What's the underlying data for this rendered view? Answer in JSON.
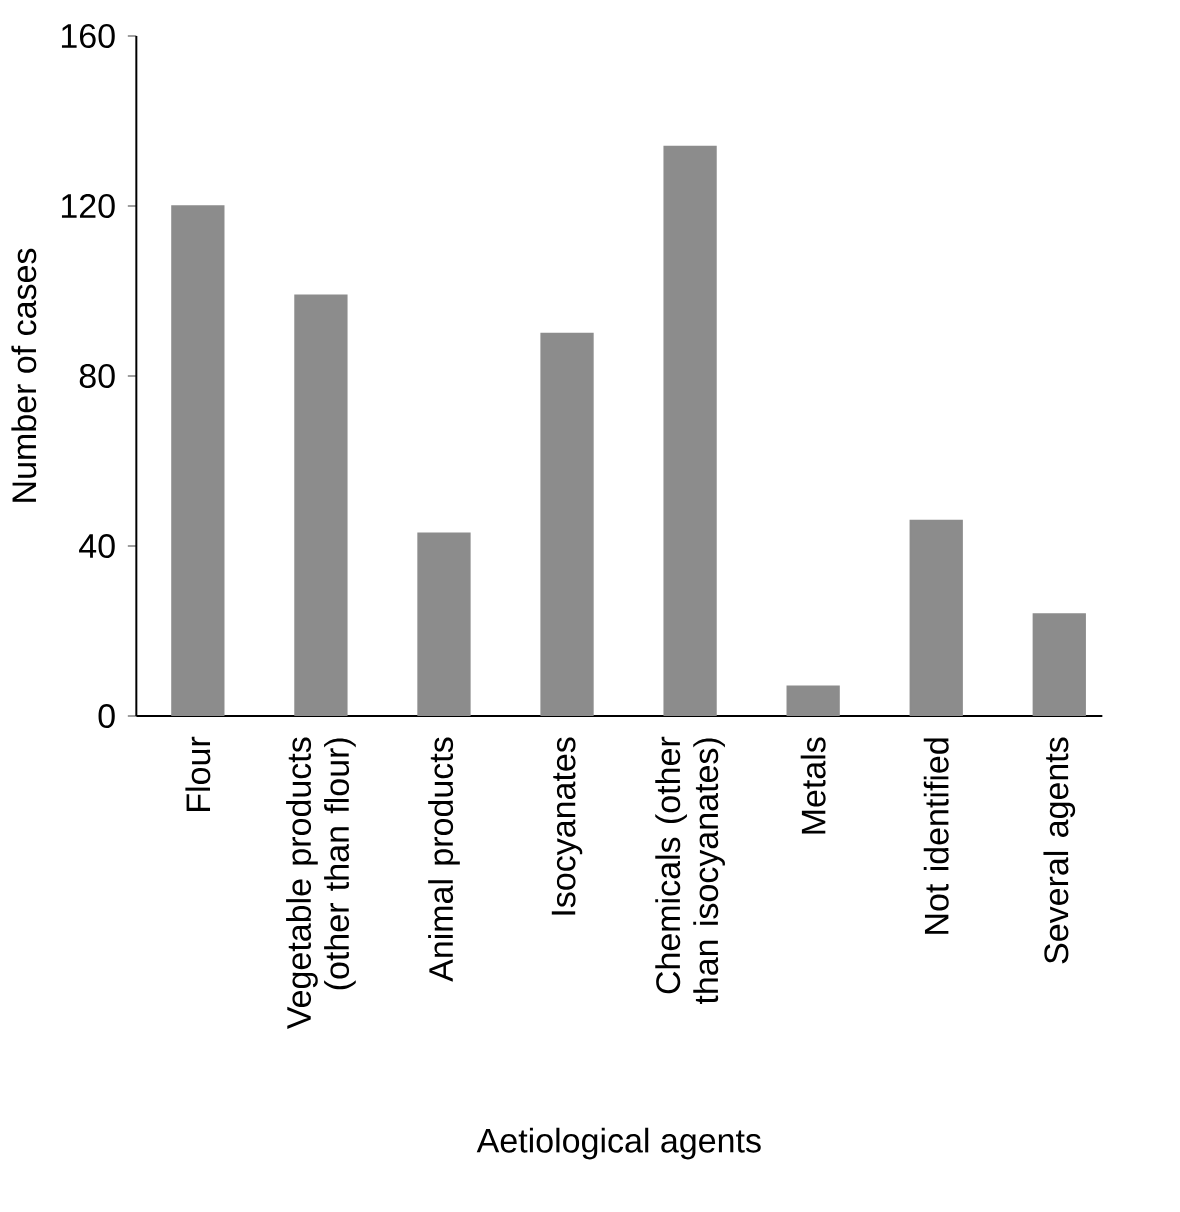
{
  "chart_data": {
    "type": "bar",
    "xlabel": "Aetiological agents",
    "ylabel": "Number of cases",
    "categories": [
      "Flour",
      "Vegetable products (other than flour)",
      "Animal products",
      "Isocyanates",
      "Chemicals (other than isocyanates)",
      "Metals",
      "Not identified",
      "Several agents"
    ],
    "values": [
      120,
      99,
      43,
      90,
      134,
      7,
      46,
      24
    ],
    "color": "#8c8c8c",
    "ylim": [
      0,
      160
    ],
    "yticks": [
      0,
      40,
      80,
      120,
      160
    ],
    "grid": false
  }
}
